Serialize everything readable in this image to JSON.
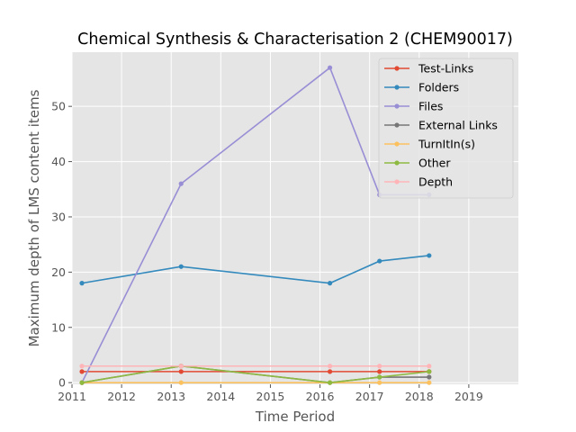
{
  "chart_data": {
    "type": "line",
    "title": "Chemical Synthesis & Characterisation 2 (CHEM90017)",
    "xlabel": "Time Period",
    "ylabel": "Maximum depth of LMS content items",
    "xlim": [
      2011,
      2020
    ],
    "ylim": [
      -0.3,
      59.8
    ],
    "x_ticks": [
      "2011",
      "2012",
      "2013",
      "2014",
      "2015",
      "2016",
      "2017",
      "2018",
      "2019"
    ],
    "y_ticks": [
      "0",
      "10",
      "20",
      "30",
      "40",
      "50"
    ],
    "x": [
      2011.2,
      2013.2,
      2016.2,
      2017.2,
      2018.2
    ],
    "grid": true,
    "legend_position": "top-right",
    "series": [
      {
        "name": "Test-Links",
        "color": "#E24A33",
        "values": [
          2,
          2,
          2,
          2,
          2
        ]
      },
      {
        "name": "Folders",
        "color": "#348ABD",
        "values": [
          18,
          21,
          18,
          22,
          23
        ]
      },
      {
        "name": "Files",
        "color": "#988ED5",
        "values": [
          0,
          36,
          57,
          34,
          34
        ]
      },
      {
        "name": "External Links",
        "color": "#777777",
        "values": [
          0,
          3,
          0,
          1,
          1
        ]
      },
      {
        "name": "TurnItIn(s)",
        "color": "#FBC15E",
        "values": [
          0,
          0,
          0,
          0,
          0
        ]
      },
      {
        "name": "Other",
        "color": "#8EBA42",
        "values": [
          0,
          3,
          0,
          1,
          2
        ]
      },
      {
        "name": "Depth",
        "color": "#FFB5B8",
        "values": [
          3,
          3,
          3,
          3,
          3
        ]
      }
    ]
  }
}
